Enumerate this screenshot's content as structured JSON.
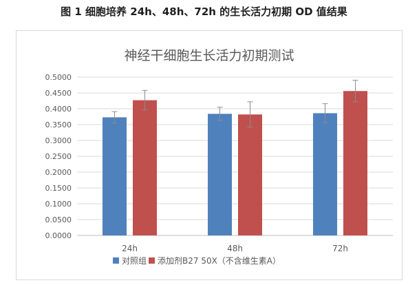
{
  "figure_caption": "图 1  细胞培养 24h、48h、72h 的生长活力初期 OD 值结果",
  "chart_data": {
    "type": "bar",
    "title": "神经干细胞生长活力初期测试",
    "categories": [
      "24h",
      "48h",
      "72h"
    ],
    "ylim": [
      0,
      0.5
    ],
    "yticks": [
      0,
      0.05,
      0.1,
      0.15,
      0.2,
      0.25,
      0.3,
      0.35,
      0.4,
      0.45,
      0.5
    ],
    "ytick_labels": [
      "0.0000",
      "0.0500",
      "0.1000",
      "0.1500",
      "0.2000",
      "0.2500",
      "0.3000",
      "0.3500",
      "0.4000",
      "0.4500",
      "0.5000"
    ],
    "grid": true,
    "legend_position": "bottom",
    "series": [
      {
        "name": "对照组",
        "color": "#4F81BD",
        "values": [
          0.373,
          0.384,
          0.386
        ],
        "errors": [
          0.018,
          0.021,
          0.03
        ]
      },
      {
        "name": "添加剂B27 50X（不含维生素A）",
        "color": "#C0504D",
        "values": [
          0.427,
          0.382,
          0.456
        ],
        "errors": [
          0.031,
          0.04,
          0.034
        ]
      }
    ]
  }
}
